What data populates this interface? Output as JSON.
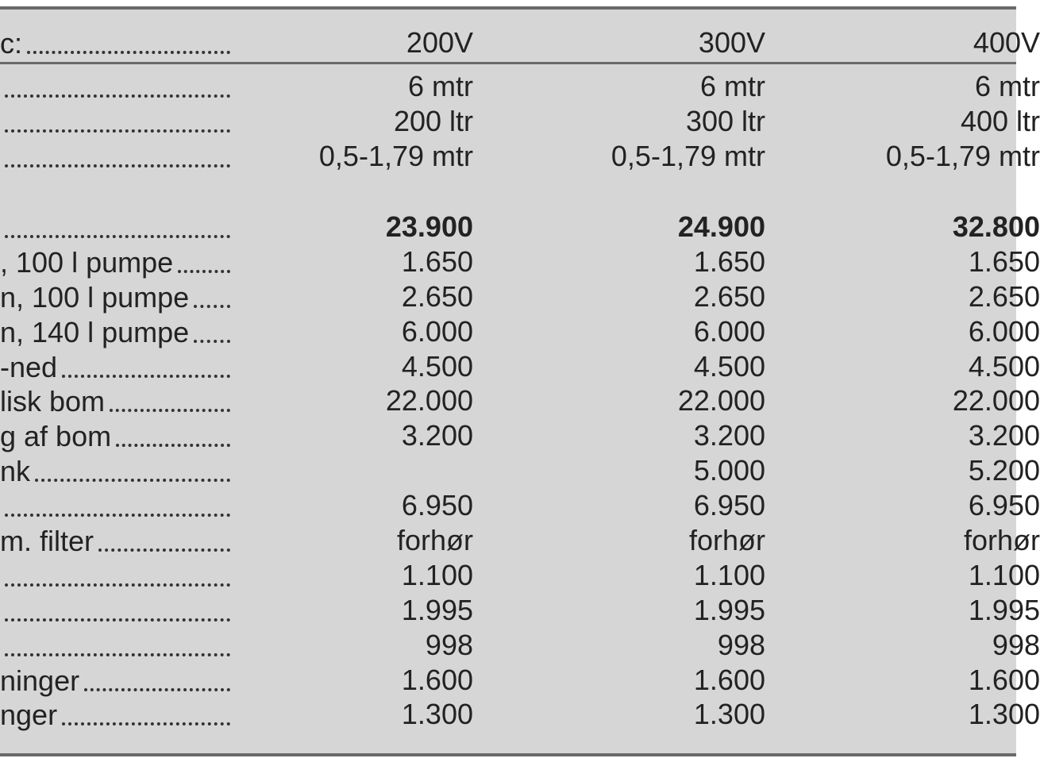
{
  "header": {
    "label": "c:",
    "columns": [
      "200V",
      "300V",
      "400V"
    ]
  },
  "rows": [
    {
      "values": [
        "6 mtr",
        "6 mtr",
        "6 mtr"
      ]
    },
    {
      "values": [
        "200 ltr",
        "300 ltr",
        "400 ltr"
      ]
    },
    {
      "values": [
        "0,5-1,79 mtr",
        "0,5-1,79 mtr",
        "0,5-1,79 mtr"
      ]
    },
    {
      "values": [
        "23.900",
        "24.900",
        "32.800"
      ],
      "bold": true
    },
    {
      "label": ", 100 l pumpe",
      "values": [
        "1.650",
        "1.650",
        "1.650"
      ]
    },
    {
      "label": "n, 100 l pumpe",
      "values": [
        "2.650",
        "2.650",
        "2.650"
      ]
    },
    {
      "label": "n, 140 l pumpe",
      "values": [
        "6.000",
        "6.000",
        "6.000"
      ]
    },
    {
      "label": "-ned",
      "values": [
        "4.500",
        "4.500",
        "4.500"
      ]
    },
    {
      "label": "lisk bom",
      "values": [
        "22.000",
        "22.000",
        "22.000"
      ]
    },
    {
      "label": "g af bom",
      "values": [
        "3.200",
        "3.200",
        "3.200"
      ]
    },
    {
      "label": "nk",
      "values": [
        null,
        "5.000",
        "5.200"
      ]
    },
    {
      "values": [
        "6.950",
        "6.950",
        "6.950"
      ]
    },
    {
      "label": "m. filter",
      "values": [
        "forhør",
        "forhør",
        "forhør"
      ]
    },
    {
      "values": [
        "1.100",
        "1.100",
        "1.100"
      ]
    },
    {
      "values": [
        "1.995",
        "1.995",
        "1.995"
      ]
    },
    {
      "values": [
        "998",
        "998",
        "998"
      ]
    },
    {
      "label": "ninger",
      "values": [
        "1.600",
        "1.600",
        "1.600"
      ]
    },
    {
      "label": "nger",
      "values": [
        "1.300",
        "1.300",
        "1.300"
      ]
    }
  ]
}
